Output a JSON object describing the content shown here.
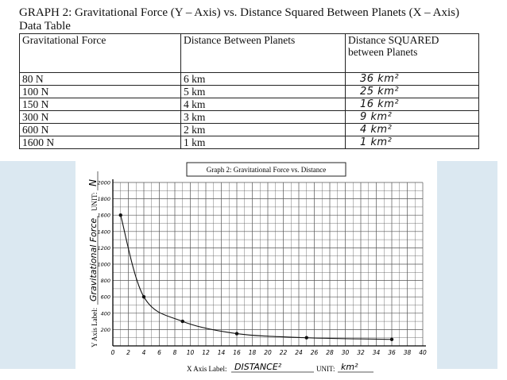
{
  "header": {
    "title": "GRAPH 2: Gravitational Force (Y – Axis) vs. Distance Squared Between Planets (X – Axis)",
    "subtitle": "Data Table"
  },
  "table": {
    "columns": [
      "Gravitational Force",
      "Distance Between Planets",
      "Distance SQUARED between Planets"
    ],
    "rows": [
      [
        "80 N",
        "6 km",
        "36 km²"
      ],
      [
        "100 N",
        "5 km",
        "25 km²"
      ],
      [
        "150 N",
        "4 km",
        "16 km²"
      ],
      [
        "300 N",
        "3 km",
        "9 km²"
      ],
      [
        "600 N",
        "2 km",
        "4 km²"
      ],
      [
        "1600 N",
        "1 km",
        "1 km²"
      ]
    ]
  },
  "graph": {
    "title": "Graph 2: Gravitational Force vs. Distance",
    "y_axis_label_prefix": "Y Axis Label:",
    "y_axis_label_value": "Gravitational Force",
    "y_unit_prefix": "UNIT:",
    "y_unit_value": "N",
    "x_axis_label_prefix": "X Axis Label:",
    "x_axis_label_value": "DISTANCE²",
    "x_unit_prefix": "UNIT:",
    "x_unit_value": "km²"
  },
  "colors": {
    "side_band": "#dbe8f1",
    "grid": "#555555",
    "curve": "#111111"
  },
  "chart_data": {
    "type": "line",
    "title": "Graph 2: Gravitational Force vs. Distance",
    "xlabel": "DISTANCE²",
    "ylabel": "Gravitational Force",
    "x": [
      1,
      4,
      9,
      16,
      25,
      36
    ],
    "series": [
      {
        "values": [
          1600,
          600,
          300,
          150,
          100,
          80
        ]
      }
    ],
    "xlim": [
      0,
      40
    ],
    "ylim": [
      0,
      2000
    ],
    "x_ticks": [
      0,
      2,
      4,
      6,
      8,
      10,
      12,
      14,
      16,
      18,
      20,
      22,
      24,
      26,
      28,
      30,
      32,
      34,
      36,
      38,
      40
    ],
    "y_ticks": [
      200,
      400,
      600,
      800,
      1000,
      1200,
      1400,
      1600,
      1800,
      2000
    ],
    "grid": true,
    "legend": "none"
  }
}
